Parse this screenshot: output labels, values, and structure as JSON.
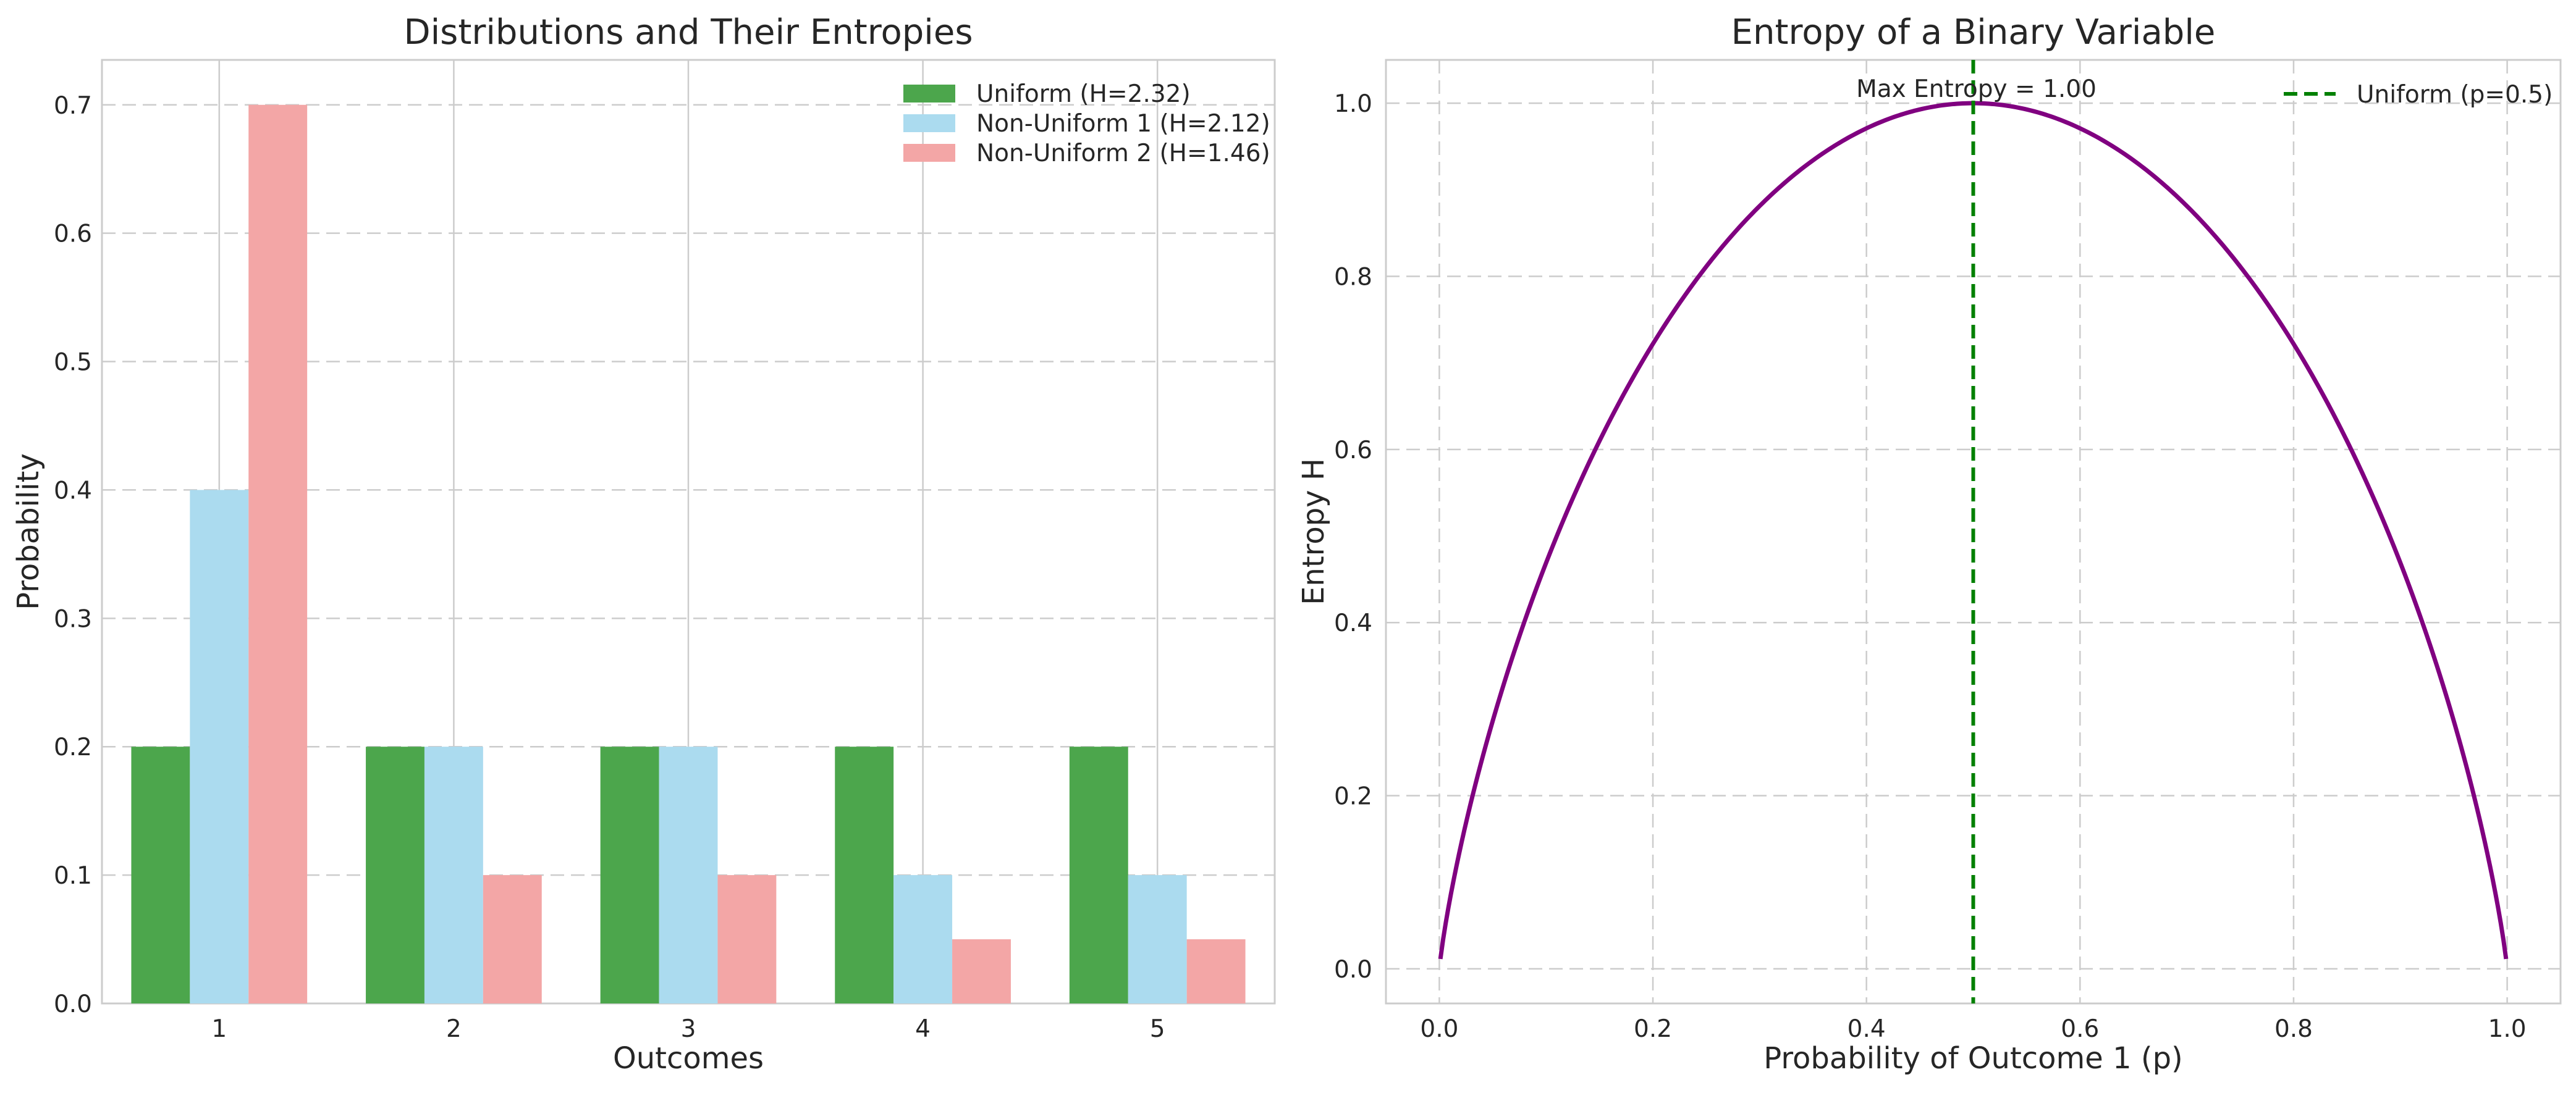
{
  "chart_data": [
    {
      "type": "bar",
      "title": "Distributions and Their Entropies",
      "xlabel": "Outcomes",
      "ylabel": "Probability",
      "categories": [
        "1",
        "2",
        "3",
        "4",
        "5"
      ],
      "ylim": [
        0,
        0.735
      ],
      "yticks": [
        0.0,
        0.1,
        0.2,
        0.3,
        0.4,
        0.5,
        0.6,
        0.7
      ],
      "ytick_labels": [
        "0.0",
        "0.1",
        "0.2",
        "0.3",
        "0.4",
        "0.5",
        "0.6",
        "0.7"
      ],
      "grid": true,
      "legend_position": "top-right",
      "series": [
        {
          "name": "Uniform (H=2.32)",
          "values": [
            0.2,
            0.2,
            0.2,
            0.2,
            0.2
          ],
          "color": "#4ca64c"
        },
        {
          "name": "Non-Uniform 1 (H=2.12)",
          "values": [
            0.4,
            0.2,
            0.2,
            0.1,
            0.1
          ],
          "color": "#abdbef"
        },
        {
          "name": "Non-Uniform 2 (H=1.46)",
          "values": [
            0.7,
            0.1,
            0.1,
            0.05,
            0.05
          ],
          "color": "#f3a6a6"
        }
      ]
    },
    {
      "type": "line",
      "title": "Entropy of a Binary Variable",
      "xlabel": "Probability of Outcome 1 (p)",
      "ylabel": "Entropy H",
      "xlim": [
        -0.05,
        1.05
      ],
      "ylim": [
        -0.04,
        1.05
      ],
      "xticks": [
        0.0,
        0.2,
        0.4,
        0.6,
        0.8,
        1.0
      ],
      "xtick_labels": [
        "0.0",
        "0.2",
        "0.4",
        "0.6",
        "0.8",
        "1.0"
      ],
      "yticks": [
        0.0,
        0.2,
        0.4,
        0.6,
        0.8,
        1.0
      ],
      "ytick_labels": [
        "0.0",
        "0.2",
        "0.4",
        "0.6",
        "0.8",
        "1.0"
      ],
      "grid": true,
      "legend_position": "top-right",
      "curve": {
        "function": "binary entropy H(p) = -p·log2(p) - (1-p)·log2(1-p)",
        "x_range": [
          0.001,
          0.999
        ],
        "color": "#800080",
        "sample_points": [
          {
            "x": 0.001,
            "y": 0.01
          },
          {
            "x": 0.1,
            "y": 0.469
          },
          {
            "x": 0.2,
            "y": 0.722
          },
          {
            "x": 0.3,
            "y": 0.881
          },
          {
            "x": 0.4,
            "y": 0.971
          },
          {
            "x": 0.5,
            "y": 1.0
          },
          {
            "x": 0.6,
            "y": 0.971
          },
          {
            "x": 0.7,
            "y": 0.881
          },
          {
            "x": 0.8,
            "y": 0.722
          },
          {
            "x": 0.9,
            "y": 0.469
          },
          {
            "x": 0.999,
            "y": 0.01
          }
        ]
      },
      "reference_line": {
        "name": "Uniform (p=0.5)",
        "x": 0.5,
        "color": "#008000",
        "style": "dashed"
      },
      "annotation": {
        "text": "Max Entropy = 1.00",
        "x": 0.5,
        "y": 1.0
      }
    }
  ]
}
